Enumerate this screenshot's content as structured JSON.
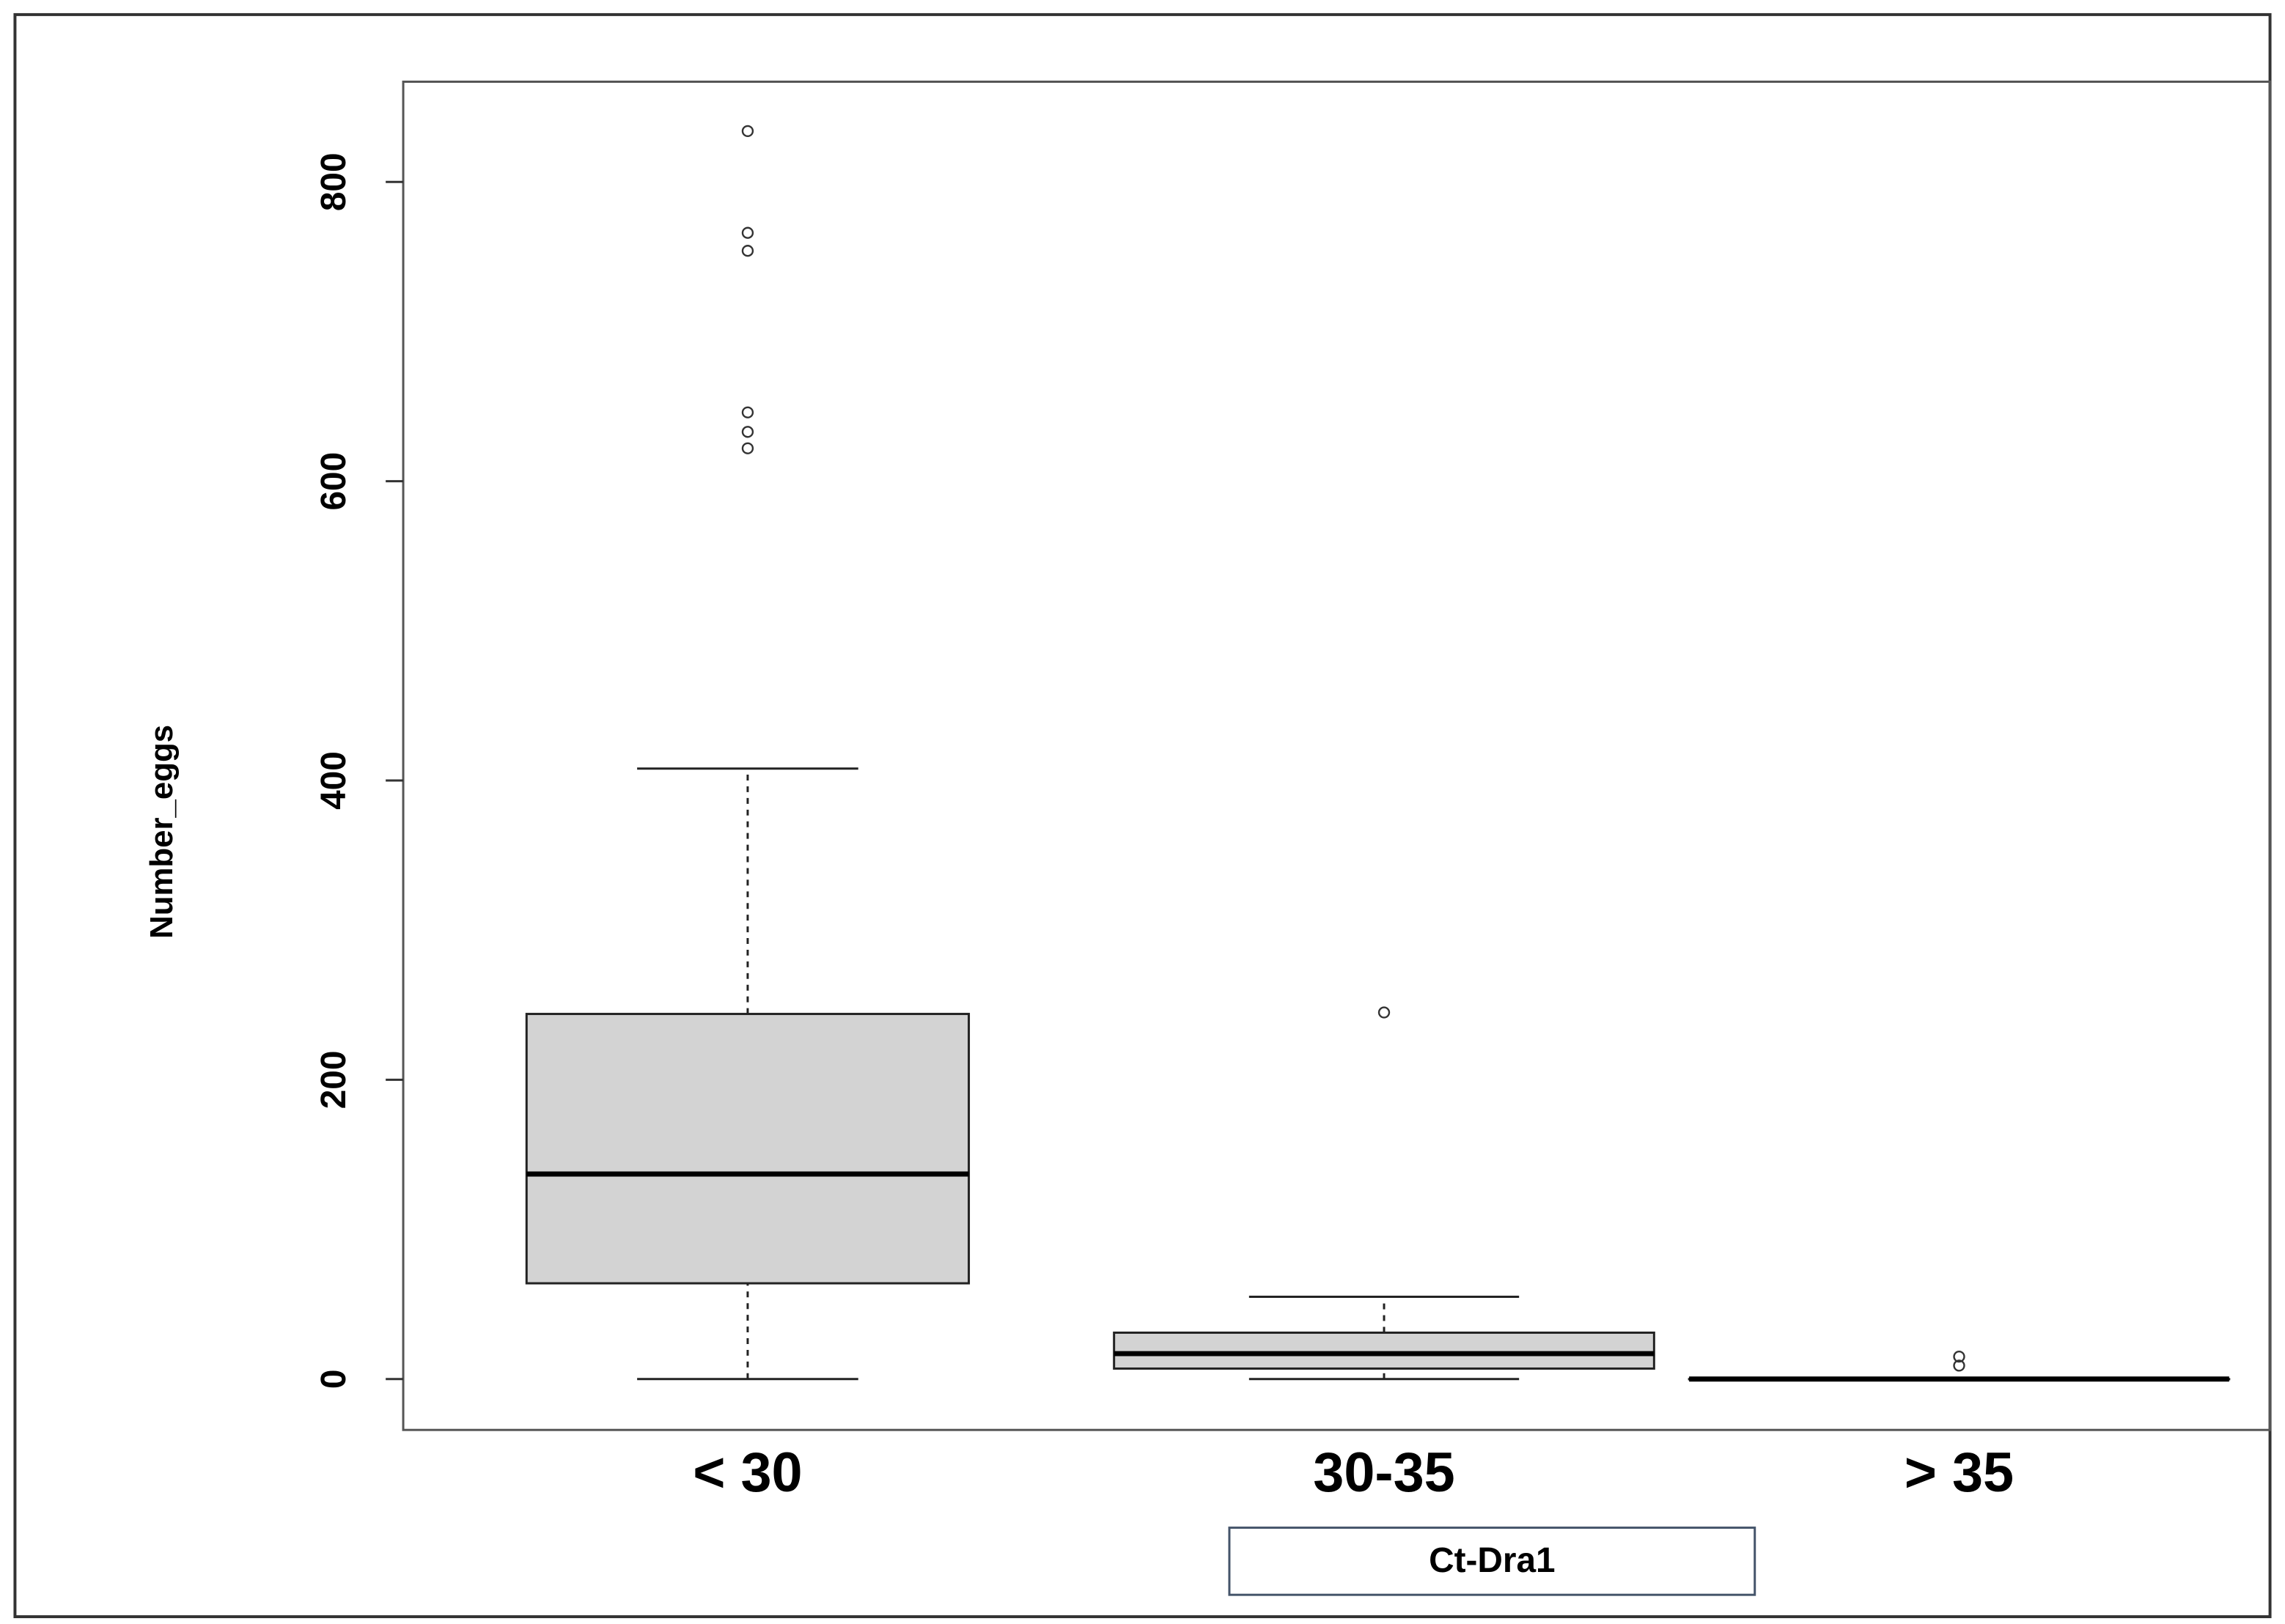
{
  "chart_data": {
    "type": "box",
    "y_label": "Number_eggs",
    "x_label": "Ct-Dra1",
    "categories": [
      "< 30",
      "30-35",
      "> 35"
    ],
    "color": "#d3d3d3",
    "ylim": [
      -34,
      867
    ],
    "yticks": [
      0,
      200,
      400,
      600,
      800
    ],
    "boxes": [
      {
        "whislo": 0,
        "q1": 64,
        "med": 137,
        "q3": 244,
        "whishi": 408,
        "fliers": [
          622,
          633,
          646,
          754,
          766,
          834
        ]
      },
      {
        "whislo": 0,
        "q1": 7,
        "med": 17,
        "q3": 31,
        "whishi": 55,
        "fliers": [
          245
        ]
      },
      {
        "whislo": 0,
        "q1": 0,
        "med": 0,
        "q3": 0,
        "whishi": 0,
        "fliers": [
          9,
          15
        ]
      }
    ]
  }
}
